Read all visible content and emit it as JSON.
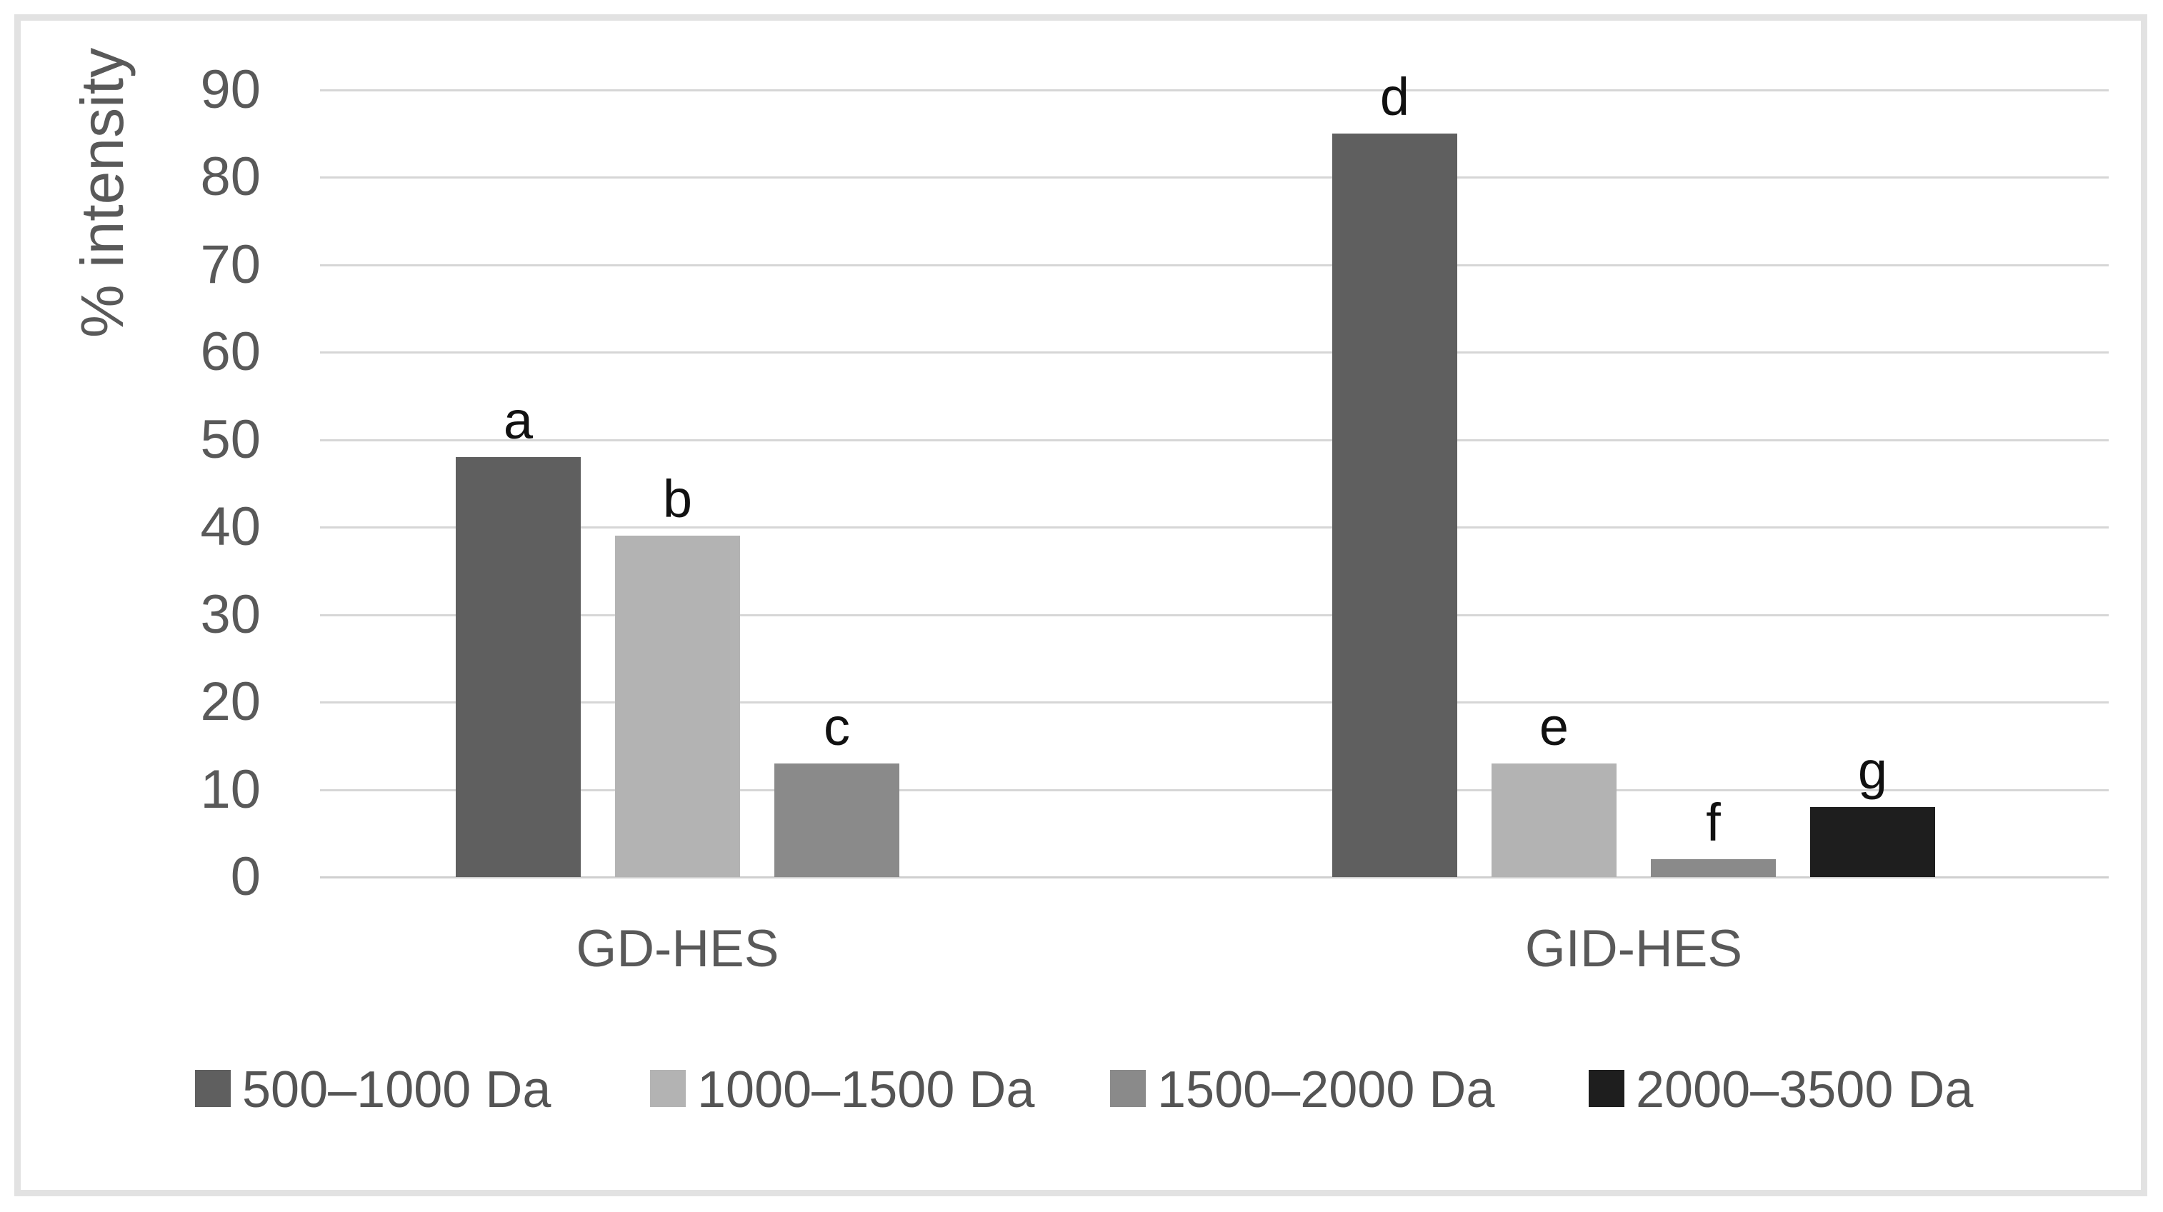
{
  "chart_data": {
    "type": "bar",
    "title": "",
    "xlabel": "",
    "ylabel": "% intensity",
    "ylim": [
      0,
      90
    ],
    "yticks": [
      0,
      10,
      20,
      30,
      40,
      50,
      60,
      70,
      80,
      90
    ],
    "grid": true,
    "legend_position": "bottom",
    "categories": [
      "GD-HES",
      "GID-HES"
    ],
    "series": [
      {
        "name": "500–1000 Da",
        "color": "#5f5f5f",
        "values": [
          48,
          85
        ],
        "bar_labels": [
          "a",
          "d"
        ]
      },
      {
        "name": "1000–1500 Da",
        "color": "#b3b3b3",
        "values": [
          39,
          13
        ],
        "bar_labels": [
          "b",
          "e"
        ]
      },
      {
        "name": "1500–2000 Da",
        "color": "#8a8a8a",
        "values": [
          13,
          2
        ],
        "bar_labels": [
          "c",
          "f"
        ]
      },
      {
        "name": "2000–3500 Da",
        "color": "#1e1e1e",
        "values": [
          null,
          8
        ],
        "bar_labels": [
          null,
          "g"
        ]
      }
    ],
    "style": {
      "gridline_color": "#d6d6d6",
      "axis_line_color": "#cfcfcf",
      "tick_text_color": "#595959",
      "bar_label_color": "#111111",
      "frame_border_color": "#e2e2e2",
      "background": "#ffffff"
    }
  }
}
